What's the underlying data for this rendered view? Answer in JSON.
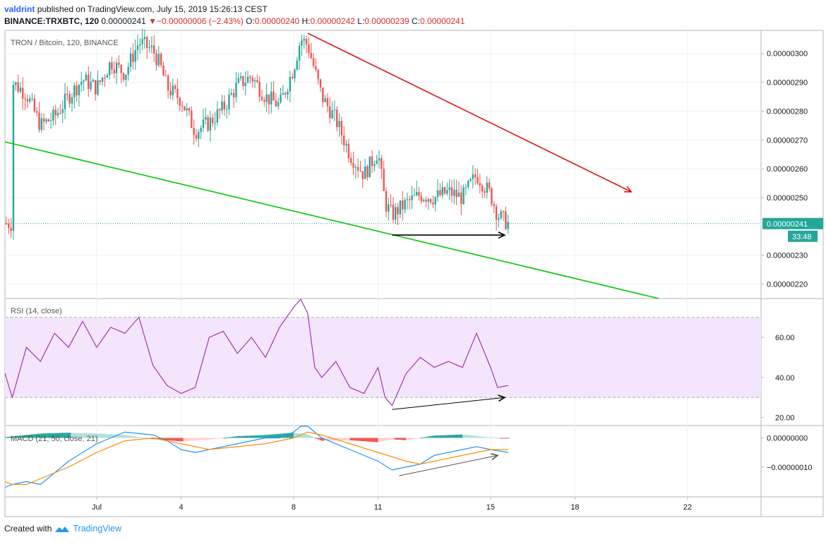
{
  "header": {
    "user": "valdrint",
    "published": "published on TradingView.com, July 15, 2019 15:26:13 CEST",
    "symbol": "BINANCE:TRXBTC, 120",
    "price": "0.00000241",
    "change_arrow": "▼",
    "change": "−0.00000006 (−2.43%)",
    "o_label": "O:",
    "o": "0.00000240",
    "h_label": "H:",
    "h": "0.00000242",
    "l_label": "L:",
    "l": "0.00000239",
    "c_label": "C:",
    "c": "0.00000241"
  },
  "footer": {
    "created": "Created with",
    "brand": "TradingView",
    "logo_icon": "tradingview-logo-icon"
  },
  "colors": {
    "up": "#26a69a",
    "down": "#ef5350",
    "support": "#00c800",
    "resistance": "#e01010",
    "rsi": "#9c27b0",
    "rsi_band": "#f3e5fb",
    "macd": "#2196f3",
    "signal": "#ff8c00",
    "hist_up_strong": "#26a69a",
    "hist_up_weak": "#b2dfdb",
    "hist_dn_strong": "#ef5350",
    "hist_dn_weak": "#ffcdd2",
    "last_price_bg": "#26a69a"
  },
  "chart_data": [
    {
      "type": "candlestick",
      "title": "TRON / Bitcoin, 120, BINANCE",
      "x_ticks": [
        "Jul",
        "4",
        "8",
        "11",
        "15",
        "18",
        "22"
      ],
      "ylim": [
        2.15e-06,
        3.08e-06
      ],
      "y_ticks": [
        "0.00000300",
        "0.00000290",
        "0.00000280",
        "0.00000270",
        "0.00000260",
        "0.00000250",
        "0.00000230",
        "0.00000220"
      ],
      "last_price": "0.00000241",
      "countdown": "33:48",
      "close_path": [
        [
          "2019-06-28",
          2.9e-06
        ],
        [
          "2019-06-28 12:00",
          2.86e-06
        ],
        [
          "2019-06-29",
          2.75e-06
        ],
        [
          "2019-06-29 12:00",
          2.78e-06
        ],
        [
          "2019-06-30",
          2.85e-06
        ],
        [
          "2019-06-30 12:00",
          2.91e-06
        ],
        [
          "2019-07-01",
          2.88e-06
        ],
        [
          "2019-07-01 12:00",
          2.97e-06
        ],
        [
          "2019-07-02",
          2.93e-06
        ],
        [
          "2019-07-02 12:00",
          3.04e-06
        ],
        [
          "2019-07-03",
          3.01e-06
        ],
        [
          "2019-07-03 06:00",
          2.96e-06
        ],
        [
          "2019-07-03 12:00",
          2.88e-06
        ],
        [
          "2019-07-04",
          2.84e-06
        ],
        [
          "2019-07-04 12:00",
          2.73e-06
        ],
        [
          "2019-07-05",
          2.76e-06
        ],
        [
          "2019-07-05 12:00",
          2.81e-06
        ],
        [
          "2019-07-06",
          2.89e-06
        ],
        [
          "2019-07-06 12:00",
          2.92e-06
        ],
        [
          "2019-07-07",
          2.85e-06
        ],
        [
          "2019-07-07 12:00",
          2.82e-06
        ],
        [
          "2019-07-08",
          2.95e-06
        ],
        [
          "2019-07-08 06:00",
          3.05e-06
        ],
        [
          "2019-07-08 12:00",
          3.03e-06
        ],
        [
          "2019-07-09",
          2.85e-06
        ],
        [
          "2019-07-09 12:00",
          2.77e-06
        ],
        [
          "2019-07-10",
          2.65e-06
        ],
        [
          "2019-07-10 12:00",
          2.58e-06
        ],
        [
          "2019-07-11",
          2.66e-06
        ],
        [
          "2019-07-11 06:00",
          2.48e-06
        ],
        [
          "2019-07-11 12:00",
          2.44e-06
        ],
        [
          "2019-07-12",
          2.48e-06
        ],
        [
          "2019-07-12 12:00",
          2.51e-06
        ],
        [
          "2019-07-13",
          2.5e-06
        ],
        [
          "2019-07-13 12:00",
          2.52e-06
        ],
        [
          "2019-07-14",
          2.5e-06
        ],
        [
          "2019-07-14 12:00",
          2.58e-06
        ],
        [
          "2019-07-15",
          2.51e-06
        ],
        [
          "2019-07-15 06:00",
          2.44e-06
        ],
        [
          "2019-07-15 15:00",
          2.41e-06
        ]
      ],
      "support_line": {
        "color": "green",
        "from": [
          "2019-06-27",
          2.71e-06
        ],
        "to": [
          "2019-07-20",
          2.19e-06
        ]
      },
      "resistance_arrow": {
        "color": "red",
        "from": [
          "2019-07-08 12:00",
          3.07e-06
        ],
        "to": [
          "2019-07-20",
          2.52e-06
        ]
      },
      "horizontal_arrow": {
        "color": "black",
        "from": [
          "2019-07-11 12:00",
          2.37e-06
        ],
        "to": [
          "2019-07-15 12:00",
          2.37e-06
        ]
      }
    },
    {
      "type": "line",
      "title": "RSI (14, close)",
      "ylim": [
        16,
        79
      ],
      "y_ticks": [
        "60.00",
        "40.00",
        "20.00"
      ],
      "band": [
        30,
        70
      ],
      "series": [
        {
          "values": [
            [
              "2019-06-27",
              42
            ],
            [
              "2019-06-28",
              30
            ],
            [
              "2019-06-28 12:00",
              55
            ],
            [
              "2019-06-29",
              48
            ],
            [
              "2019-06-29 12:00",
              62
            ],
            [
              "2019-06-30",
              55
            ],
            [
              "2019-06-30 12:00",
              68
            ],
            [
              "2019-07-01",
              55
            ],
            [
              "2019-07-01 12:00",
              65
            ],
            [
              "2019-07-02",
              62
            ],
            [
              "2019-07-02 12:00",
              70
            ],
            [
              "2019-07-03",
              46
            ],
            [
              "2019-07-03 12:00",
              36
            ],
            [
              "2019-07-04",
              32
            ],
            [
              "2019-07-04 12:00",
              35
            ],
            [
              "2019-07-05",
              60
            ],
            [
              "2019-07-05 12:00",
              63
            ],
            [
              "2019-07-06",
              52
            ],
            [
              "2019-07-06 12:00",
              60
            ],
            [
              "2019-07-07",
              50
            ],
            [
              "2019-07-07 12:00",
              65
            ],
            [
              "2019-07-08",
              75
            ],
            [
              "2019-07-08 06:00",
              79
            ],
            [
              "2019-07-08 12:00",
              72
            ],
            [
              "2019-07-08 18:00",
              45
            ],
            [
              "2019-07-09",
              40
            ],
            [
              "2019-07-09 12:00",
              48
            ],
            [
              "2019-07-10",
              35
            ],
            [
              "2019-07-10 12:00",
              32
            ],
            [
              "2019-07-11",
              45
            ],
            [
              "2019-07-11 06:00",
              30
            ],
            [
              "2019-07-11 12:00",
              26
            ],
            [
              "2019-07-12",
              42
            ],
            [
              "2019-07-12 12:00",
              50
            ],
            [
              "2019-07-13",
              45
            ],
            [
              "2019-07-13 12:00",
              48
            ],
            [
              "2019-07-14",
              45
            ],
            [
              "2019-07-14 12:00",
              62
            ],
            [
              "2019-07-15",
              45
            ],
            [
              "2019-07-15 06:00",
              35
            ],
            [
              "2019-07-15 15:00",
              36
            ]
          ]
        }
      ],
      "divergence_arrow": {
        "from": [
          "2019-07-11 12:00",
          24
        ],
        "to": [
          "2019-07-15 12:00",
          30
        ]
      }
    },
    {
      "type": "line",
      "title": "MACD (21, 50, close, 21)",
      "ylim": [
        -2e-07,
        4e-08
      ],
      "y_ticks": [
        "0.00000000",
        "−0.00000010"
      ],
      "series": [
        {
          "values": [
            [
              "2019-06-27",
              -1.7e-07
            ],
            [
              "2019-06-28",
              -1.6e-07
            ],
            [
              "2019-06-28 12:00",
              -1.5e-07
            ],
            [
              "2019-06-29",
              -1.6e-07
            ],
            [
              "2019-06-29 12:00",
              -1.2e-07
            ],
            [
              "2019-06-30",
              -8e-08
            ],
            [
              "2019-06-30 12:00",
              -5e-08
            ],
            [
              "2019-07-01",
              -2e-08
            ],
            [
              "2019-07-02",
              2e-08
            ],
            [
              "2019-07-03",
              1e-08
            ],
            [
              "2019-07-03 12:00",
              -1e-08
            ],
            [
              "2019-07-04",
              -4e-08
            ],
            [
              "2019-07-04 12:00",
              -5e-08
            ],
            [
              "2019-07-05",
              -4e-08
            ],
            [
              "2019-07-06",
              -2e-08
            ],
            [
              "2019-07-07",
              0.0
            ],
            [
              "2019-07-07 12:00",
              0.0
            ],
            [
              "2019-07-08",
              2e-08
            ],
            [
              "2019-07-08 06:00",
              4e-08
            ],
            [
              "2019-07-08 12:00",
              4e-08
            ],
            [
              "2019-07-09",
              0.0
            ],
            [
              "2019-07-10",
              -4e-08
            ],
            [
              "2019-07-10 12:00",
              -6e-08
            ],
            [
              "2019-07-11",
              -8e-08
            ],
            [
              "2019-07-11 12:00",
              -1.1e-07
            ],
            [
              "2019-07-12",
              -1e-07
            ],
            [
              "2019-07-12 12:00",
              -9e-08
            ],
            [
              "2019-07-13",
              -6e-08
            ],
            [
              "2019-07-14",
              -4e-08
            ],
            [
              "2019-07-14 12:00",
              -3e-08
            ],
            [
              "2019-07-15",
              -4e-08
            ],
            [
              "2019-07-15 15:00",
              -5e-08
            ]
          ]
        },
        {
          "values": [
            [
              "2019-06-27",
              -1.5e-07
            ],
            [
              "2019-06-28",
              -1.6e-07
            ],
            [
              "2019-06-28 12:00",
              -1.6e-07
            ],
            [
              "2019-06-29",
              -1.4e-07
            ],
            [
              "2019-06-30",
              -1e-07
            ],
            [
              "2019-07-01",
              -5e-08
            ],
            [
              "2019-07-02",
              -1e-08
            ],
            [
              "2019-07-03",
              0.0
            ],
            [
              "2019-07-03 12:00",
              -1e-08
            ],
            [
              "2019-07-04",
              -2e-08
            ],
            [
              "2019-07-05",
              -4e-08
            ],
            [
              "2019-07-06",
              -3e-08
            ],
            [
              "2019-07-07",
              -2e-08
            ],
            [
              "2019-07-08",
              0.0
            ],
            [
              "2019-07-08 12:00",
              2e-08
            ],
            [
              "2019-07-09",
              1e-08
            ],
            [
              "2019-07-10",
              -2e-08
            ],
            [
              "2019-07-11",
              -5e-08
            ],
            [
              "2019-07-12",
              -8e-08
            ],
            [
              "2019-07-12 12:00",
              -9e-08
            ],
            [
              "2019-07-13",
              -8e-08
            ],
            [
              "2019-07-14",
              -6e-08
            ],
            [
              "2019-07-15",
              -4e-08
            ],
            [
              "2019-07-15 15:00",
              -4e-08
            ]
          ]
        }
      ],
      "histogram": [
        [
          "2019-06-27",
          -3e-09
        ],
        [
          "2019-06-28",
          5e-09
        ],
        [
          "2019-06-29",
          1.5e-08
        ],
        [
          "2019-06-30",
          1.8e-08
        ],
        [
          "2019-07-01",
          1.5e-08
        ],
        [
          "2019-07-02",
          1e-08
        ],
        [
          "2019-07-03",
          -4e-09
        ],
        [
          "2019-07-04",
          -1.2e-08
        ],
        [
          "2019-07-05",
          -6e-09
        ],
        [
          "2019-07-06",
          6e-09
        ],
        [
          "2019-07-07",
          1e-08
        ],
        [
          "2019-07-08",
          1.8e-08
        ],
        [
          "2019-07-08 12:00",
          1.2e-08
        ],
        [
          "2019-07-09",
          -1e-08
        ],
        [
          "2019-07-10",
          -8e-09
        ],
        [
          "2019-07-11",
          -1.5e-08
        ],
        [
          "2019-07-11 12:00",
          -5e-09
        ],
        [
          "2019-07-12",
          -8e-09
        ],
        [
          "2019-07-13",
          8e-09
        ],
        [
          "2019-07-14",
          1.2e-08
        ],
        [
          "2019-07-15",
          2e-09
        ],
        [
          "2019-07-15 15:00",
          -2e-09
        ]
      ],
      "divergence_arrow": {
        "from": [
          "2019-07-11 18:00",
          -1.3e-07
        ],
        "to": [
          "2019-07-15 06:00",
          -6e-08
        ]
      }
    }
  ]
}
